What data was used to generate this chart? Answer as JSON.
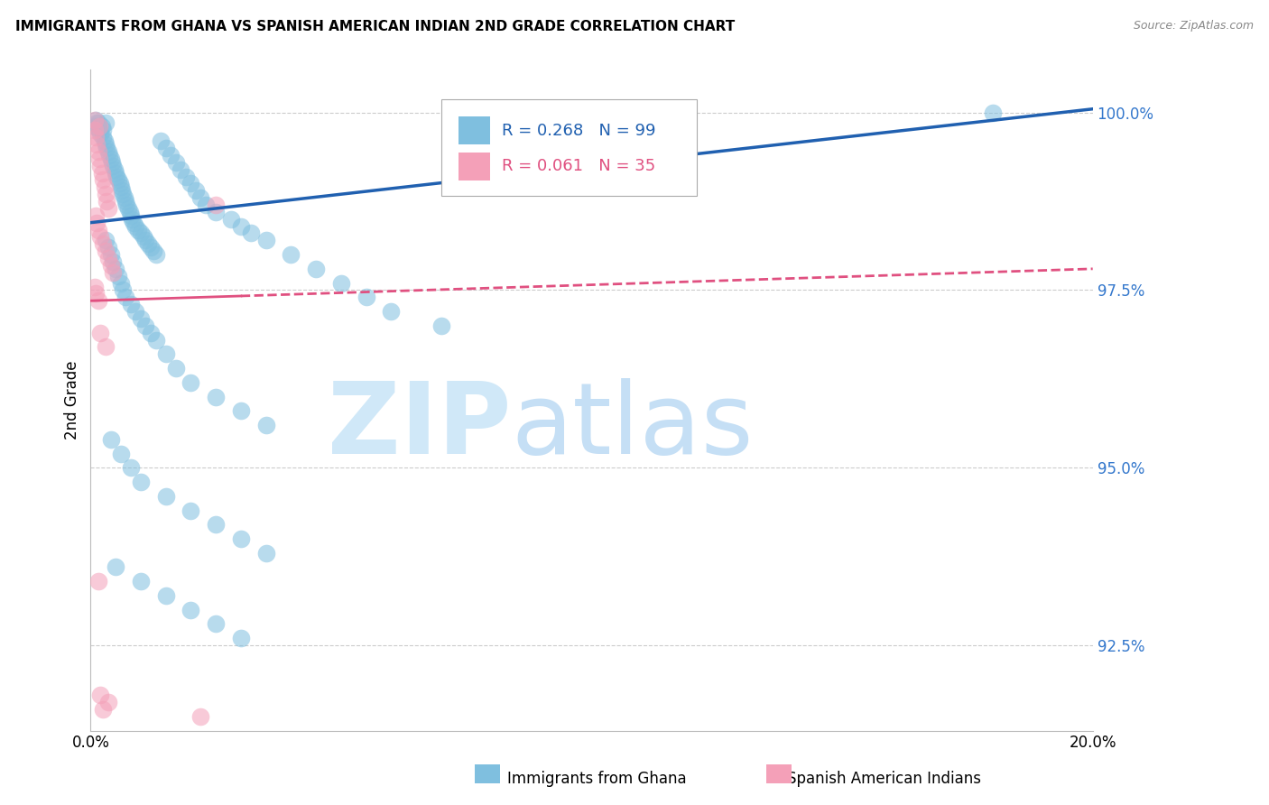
{
  "title": "IMMIGRANTS FROM GHANA VS SPANISH AMERICAN INDIAN 2ND GRADE CORRELATION CHART",
  "source": "Source: ZipAtlas.com",
  "ylabel": "2nd Grade",
  "y_ticks_right": [
    100.0,
    97.5,
    95.0,
    92.5
  ],
  "y_ticks_right_labels": [
    "100.0%",
    "97.5%",
    "95.0%",
    "92.5%"
  ],
  "xlim": [
    0.0,
    20.0
  ],
  "ylim": [
    91.3,
    100.6
  ],
  "legend_label1": "Immigrants from Ghana",
  "legend_label2": "Spanish American Indians",
  "R1": 0.268,
  "N1": 99,
  "R2": 0.061,
  "N2": 35,
  "color1": "#7fbfdf",
  "color2": "#f4a0b8",
  "trend1_color": "#2060b0",
  "trend2_color": "#e05080",
  "background_color": "#ffffff",
  "blue_scatter": [
    [
      0.15,
      99.85
    ],
    [
      0.18,
      99.75
    ],
    [
      0.2,
      99.7
    ],
    [
      0.22,
      99.8
    ],
    [
      0.25,
      99.65
    ],
    [
      0.28,
      99.6
    ],
    [
      0.3,
      99.55
    ],
    [
      0.32,
      99.5
    ],
    [
      0.35,
      99.45
    ],
    [
      0.38,
      99.4
    ],
    [
      0.4,
      99.35
    ],
    [
      0.42,
      99.3
    ],
    [
      0.45,
      99.25
    ],
    [
      0.48,
      99.2
    ],
    [
      0.5,
      99.15
    ],
    [
      0.52,
      99.1
    ],
    [
      0.55,
      99.05
    ],
    [
      0.58,
      99.0
    ],
    [
      0.6,
      98.95
    ],
    [
      0.62,
      98.9
    ],
    [
      0.1,
      99.9
    ],
    [
      0.12,
      99.85
    ],
    [
      0.08,
      99.8
    ],
    [
      0.65,
      98.85
    ],
    [
      0.68,
      98.8
    ],
    [
      0.7,
      98.75
    ],
    [
      0.72,
      98.7
    ],
    [
      0.75,
      98.65
    ],
    [
      0.78,
      98.6
    ],
    [
      0.8,
      98.55
    ],
    [
      0.82,
      98.5
    ],
    [
      0.85,
      98.45
    ],
    [
      0.9,
      98.4
    ],
    [
      0.95,
      98.35
    ],
    [
      1.0,
      98.3
    ],
    [
      1.05,
      98.25
    ],
    [
      1.1,
      98.2
    ],
    [
      1.15,
      98.15
    ],
    [
      1.2,
      98.1
    ],
    [
      1.25,
      98.05
    ],
    [
      1.3,
      98.0
    ],
    [
      1.4,
      99.6
    ],
    [
      1.5,
      99.5
    ],
    [
      1.6,
      99.4
    ],
    [
      1.7,
      99.3
    ],
    [
      1.8,
      99.2
    ],
    [
      1.9,
      99.1
    ],
    [
      2.0,
      99.0
    ],
    [
      2.1,
      98.9
    ],
    [
      2.2,
      98.8
    ],
    [
      2.3,
      98.7
    ],
    [
      2.5,
      98.6
    ],
    [
      2.8,
      98.5
    ],
    [
      3.0,
      98.4
    ],
    [
      3.2,
      98.3
    ],
    [
      3.5,
      98.2
    ],
    [
      4.0,
      98.0
    ],
    [
      4.5,
      97.8
    ],
    [
      5.0,
      97.6
    ],
    [
      0.3,
      98.2
    ],
    [
      0.35,
      98.1
    ],
    [
      0.4,
      98.0
    ],
    [
      0.45,
      97.9
    ],
    [
      0.5,
      97.8
    ],
    [
      0.55,
      97.7
    ],
    [
      0.6,
      97.6
    ],
    [
      0.65,
      97.5
    ],
    [
      0.7,
      97.4
    ],
    [
      0.8,
      97.3
    ],
    [
      0.9,
      97.2
    ],
    [
      1.0,
      97.1
    ],
    [
      1.1,
      97.0
    ],
    [
      1.2,
      96.9
    ],
    [
      1.3,
      96.8
    ],
    [
      1.5,
      96.6
    ],
    [
      1.7,
      96.4
    ],
    [
      2.0,
      96.2
    ],
    [
      2.5,
      96.0
    ],
    [
      3.0,
      95.8
    ],
    [
      3.5,
      95.6
    ],
    [
      0.4,
      95.4
    ],
    [
      0.6,
      95.2
    ],
    [
      0.8,
      95.0
    ],
    [
      1.0,
      94.8
    ],
    [
      1.5,
      94.6
    ],
    [
      2.0,
      94.4
    ],
    [
      2.5,
      94.2
    ],
    [
      3.0,
      94.0
    ],
    [
      3.5,
      93.8
    ],
    [
      0.5,
      93.6
    ],
    [
      1.0,
      93.4
    ],
    [
      1.5,
      93.2
    ],
    [
      2.0,
      93.0
    ],
    [
      2.5,
      92.8
    ],
    [
      3.0,
      92.6
    ],
    [
      5.5,
      97.4
    ],
    [
      6.0,
      97.2
    ],
    [
      7.0,
      97.0
    ],
    [
      18.0,
      100.0
    ],
    [
      0.3,
      99.85
    ],
    [
      0.25,
      99.75
    ]
  ],
  "pink_scatter": [
    [
      0.08,
      99.75
    ],
    [
      0.1,
      99.65
    ],
    [
      0.12,
      99.55
    ],
    [
      0.15,
      99.45
    ],
    [
      0.18,
      99.35
    ],
    [
      0.2,
      99.25
    ],
    [
      0.22,
      99.15
    ],
    [
      0.25,
      99.05
    ],
    [
      0.28,
      98.95
    ],
    [
      0.3,
      98.85
    ],
    [
      0.32,
      98.75
    ],
    [
      0.35,
      98.65
    ],
    [
      0.1,
      98.55
    ],
    [
      0.12,
      98.45
    ],
    [
      0.15,
      98.35
    ],
    [
      0.2,
      98.25
    ],
    [
      0.25,
      98.15
    ],
    [
      0.3,
      98.05
    ],
    [
      0.35,
      97.95
    ],
    [
      0.4,
      97.85
    ],
    [
      0.45,
      97.75
    ],
    [
      0.08,
      97.55
    ],
    [
      0.1,
      97.45
    ],
    [
      0.15,
      97.35
    ],
    [
      0.08,
      99.9
    ],
    [
      0.18,
      99.8
    ],
    [
      2.5,
      98.7
    ],
    [
      0.2,
      96.9
    ],
    [
      0.3,
      96.7
    ],
    [
      0.15,
      93.4
    ],
    [
      0.2,
      91.8
    ],
    [
      0.25,
      91.6
    ],
    [
      2.2,
      91.5
    ],
    [
      0.35,
      91.7
    ]
  ],
  "trend1_x0": 0.0,
  "trend1_y0": 98.45,
  "trend1_x1": 20.0,
  "trend1_y1": 100.05,
  "trend2_x0": 0.0,
  "trend2_y0": 97.35,
  "trend2_x1": 20.0,
  "trend2_y1": 97.8,
  "trend2_solid_end_x": 3.0
}
